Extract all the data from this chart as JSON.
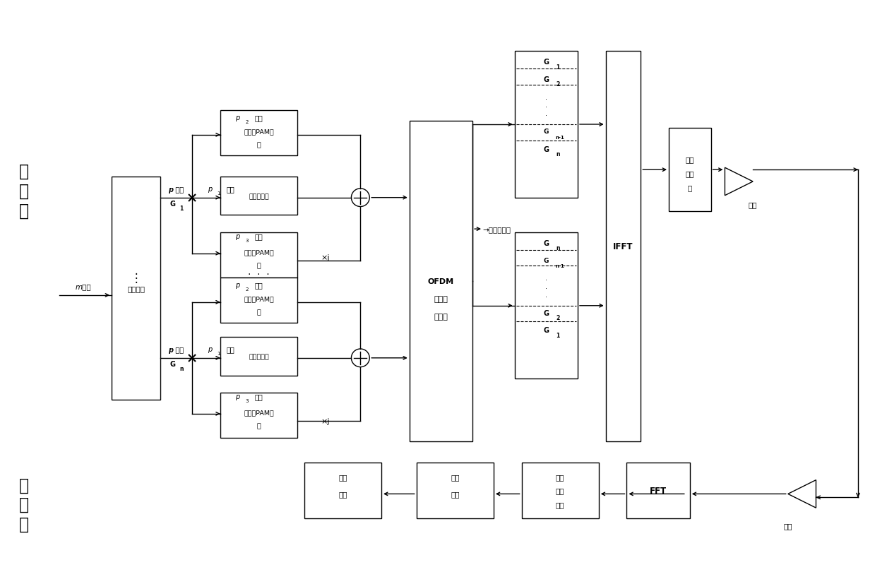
{
  "bg_color": "#ffffff",
  "figsize": [
    12.39,
    8.28
  ],
  "dpi": 100,
  "xlim": [
    0,
    124
  ],
  "ylim": [
    0,
    83
  ]
}
